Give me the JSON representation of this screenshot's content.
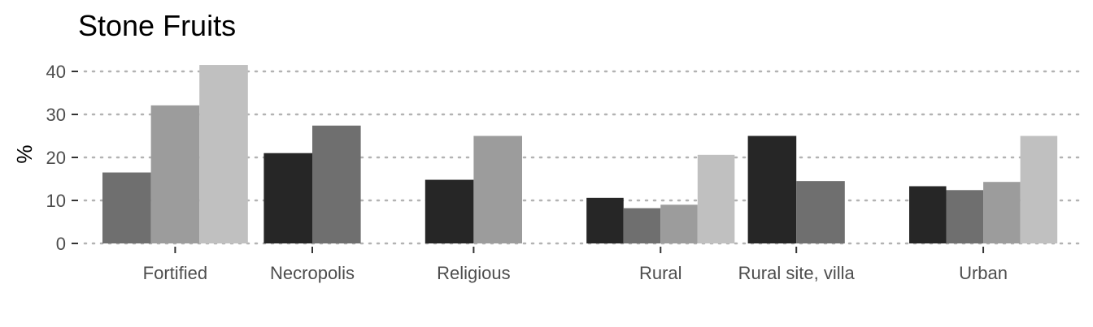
{
  "chart_data": {
    "type": "bar",
    "title": "Stone Fruits",
    "xlabel": "",
    "ylabel": "%",
    "ylim": [
      0,
      43
    ],
    "yticks": [
      0,
      10,
      20,
      30,
      40
    ],
    "grid": "horizontal dotted",
    "legend": "none",
    "categories": [
      "Fortified",
      "Necropolis",
      "Religious",
      "Rural",
      "Rural site, villa",
      "Urban"
    ],
    "series_colors": [
      "#262626",
      "#6f6f6f",
      "#9c9c9c",
      "#c0c0c0"
    ],
    "groups": [
      {
        "category": "Fortified",
        "bars": [
          {
            "series": 1,
            "value": 16.5
          },
          {
            "series": 2,
            "value": 32.1
          },
          {
            "series": 3,
            "value": 41.5
          }
        ]
      },
      {
        "category": "Necropolis",
        "bars": [
          {
            "series": 0,
            "value": 21.0
          },
          {
            "series": 1,
            "value": 27.4
          }
        ]
      },
      {
        "category": "Religious",
        "bars": [
          {
            "series": 0,
            "value": 14.8
          },
          {
            "series": 2,
            "value": 25.0
          }
        ]
      },
      {
        "category": "Rural",
        "bars": [
          {
            "series": 0,
            "value": 10.6
          },
          {
            "series": 1,
            "value": 8.2
          },
          {
            "series": 2,
            "value": 9.0
          },
          {
            "series": 3,
            "value": 20.6
          }
        ]
      },
      {
        "category": "Rural site, villa",
        "bars": [
          {
            "series": 0,
            "value": 25.0
          },
          {
            "series": 1,
            "value": 14.5
          }
        ]
      },
      {
        "category": "Urban",
        "bars": [
          {
            "series": 0,
            "value": 13.3
          },
          {
            "series": 1,
            "value": 12.4
          },
          {
            "series": 2,
            "value": 14.3
          },
          {
            "series": 3,
            "value": 25.0
          }
        ]
      }
    ]
  }
}
